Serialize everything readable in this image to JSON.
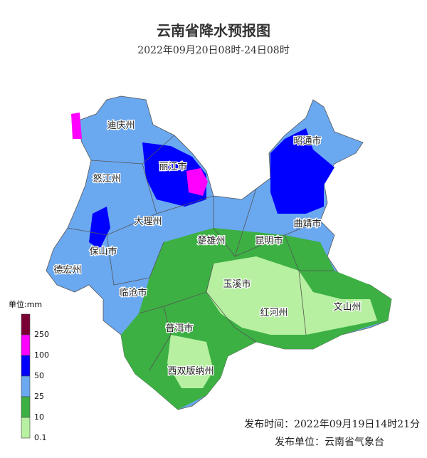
{
  "header": {
    "title": "云南省降水预报图",
    "subtitle": "2022年09月20日08时-24日08时"
  },
  "regions": [
    "迪庆州",
    "昭通市",
    "怒江州",
    "丽江市",
    "大理州",
    "曲靖市",
    "楚雄州",
    "昆明市",
    "保山市",
    "德宏州",
    "临沧市",
    "玉溪市",
    "红河州",
    "文山州",
    "普洱市",
    "西双版纳州"
  ],
  "legend": {
    "unit": "单位:mm",
    "levels": [
      {
        "value": 250,
        "color": "#7a0033"
      },
      {
        "value": 100,
        "color": "#ff00ff"
      },
      {
        "value": 50,
        "color": "#0000ff"
      },
      {
        "value": 25,
        "color": "#6aa8f0"
      },
      {
        "value": 10,
        "color": "#3cb043"
      },
      {
        "value": 0.1,
        "color": "#b6f0a0"
      }
    ]
  },
  "footer": {
    "issue_time": "发布时间：2022年09月19日14时21分",
    "issuer": "发布单位：云南省气象台"
  }
}
